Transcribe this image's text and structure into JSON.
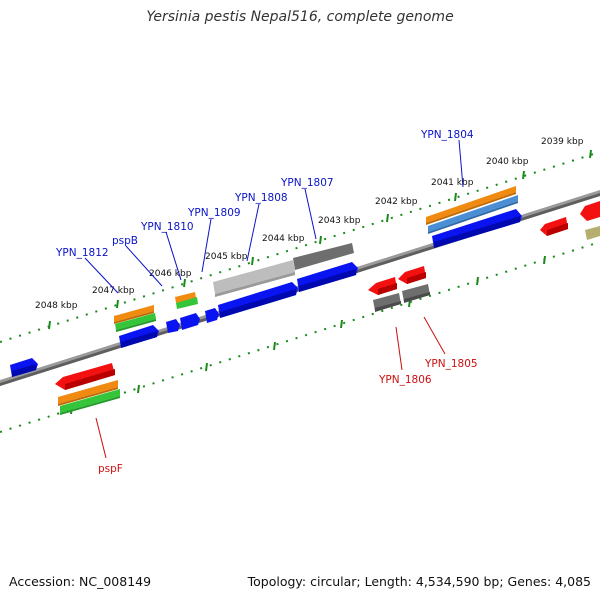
{
  "title": "Yersinia pestis Nepal516, complete genome",
  "footer": {
    "accession": "Accession: NC_008149",
    "summary": "Topology: circular; Length: 4,534,590 bp; Genes: 4,085"
  },
  "colors": {
    "plus_strand_cds": "#0a14f0",
    "minus_strand_cds": "#f21010",
    "cog_orange": "#f08a10",
    "cog_green": "#35c53a",
    "cog_steelblue": "#4a8fd6",
    "gray_feature": "#7a7a7a",
    "light_gray_feature": "#b9b9b9",
    "olive_feature": "#b5ae6e",
    "backbone": "#808080",
    "ruler_ticks": "#1a8a1a",
    "label_blue": "#0a14c8",
    "label_red": "#cc1010"
  },
  "ruler_labels": [
    "2039 kbp",
    "2040 kbp",
    "2041 kbp",
    "2042 kbp",
    "2043 kbp",
    "2044 kbp",
    "2045 kbp",
    "2046 kbp",
    "2047 kbp",
    "2048 kbp"
  ],
  "gene_labels": {
    "top": [
      "YPN_1804",
      "YPN_1807",
      "YPN_1808",
      "YPN_1809",
      "YPN_1810",
      "pspB",
      "YPN_1812"
    ],
    "bottom": [
      "YPN_1806",
      "YPN_1805",
      "pspF"
    ]
  }
}
